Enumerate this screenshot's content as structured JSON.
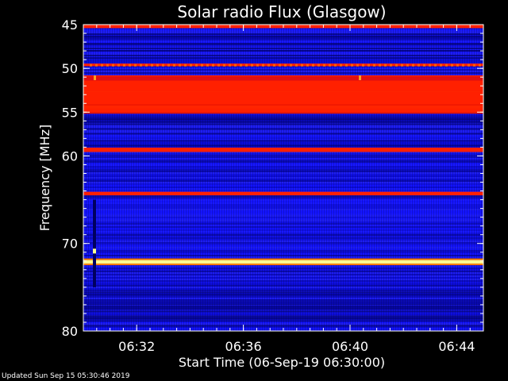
{
  "chart_data": {
    "type": "heatmap",
    "title": "Solar radio Flux (Glasgow)",
    "xlabel": "Start Time (06-Sep-19 06:30:00)",
    "ylabel": "Frequency [MHz]",
    "y_ticks": [
      45,
      50,
      55,
      60,
      70,
      80
    ],
    "y_range": [
      45,
      80
    ],
    "x_ticks": [
      "06:32",
      "06:36",
      "06:40",
      "06:44"
    ],
    "x_range": [
      "06:30:00",
      "06:45:00"
    ],
    "grid": false,
    "colors": {
      "background": "#000000",
      "low": "#0a0aa0",
      "mid": "#1818ff",
      "high": "#ff2000",
      "peak": "#ffff90"
    },
    "bands": [
      {
        "freq": 45.2,
        "width": 0.4,
        "level": "high"
      },
      {
        "freq": 49.6,
        "width": 0.3,
        "level": "high"
      },
      {
        "freq": 51.2,
        "width": 0.6,
        "level": "mid-high"
      },
      {
        "freq": 52.0,
        "width": 1.2,
        "level": "high"
      },
      {
        "freq": 53.4,
        "width": 1.4,
        "level": "high"
      },
      {
        "freq": 54.8,
        "width": 0.4,
        "level": "high"
      },
      {
        "freq": 59.3,
        "width": 0.5,
        "level": "high"
      },
      {
        "freq": 64.3,
        "width": 0.4,
        "level": "high"
      },
      {
        "freq": 72.1,
        "width": 0.4,
        "level": "peak"
      }
    ]
  },
  "footer": {
    "updated": "Updated Sun Sep 15 05:30:46 2019"
  }
}
